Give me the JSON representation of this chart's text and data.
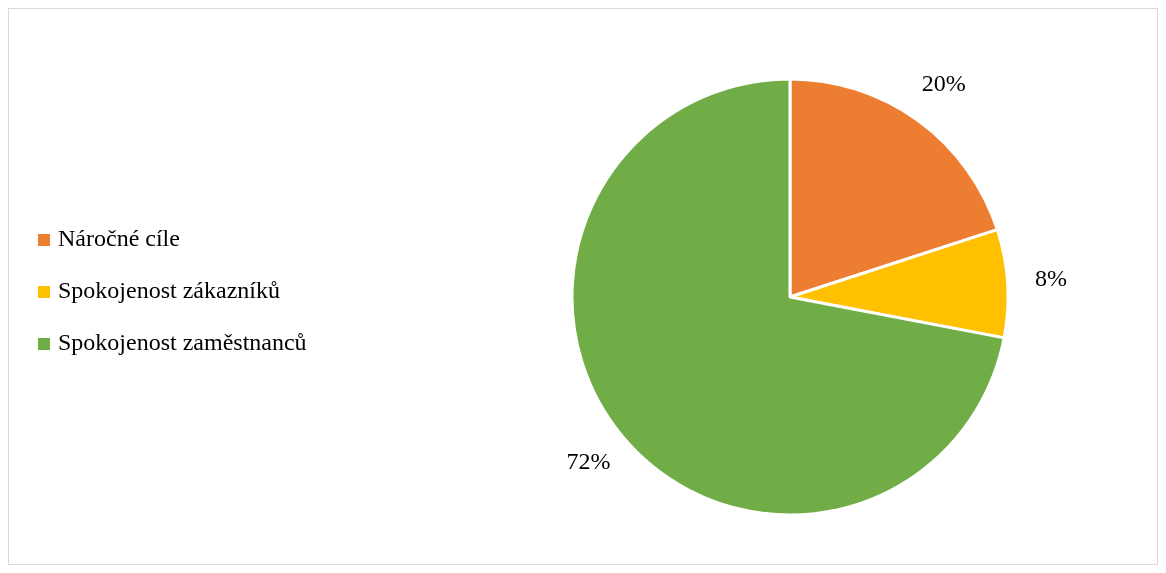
{
  "chart_data": {
    "type": "pie",
    "categories": [
      "Náročné cíle",
      "Spokojenost zákazníků",
      "Spokojenost zaměstnanců"
    ],
    "values": [
      20,
      8,
      72
    ],
    "colors": [
      "#ed7d31",
      "#ffc000",
      "#70ad47"
    ],
    "value_labels": [
      "20%",
      "8%",
      "72%"
    ],
    "legend": "left"
  }
}
